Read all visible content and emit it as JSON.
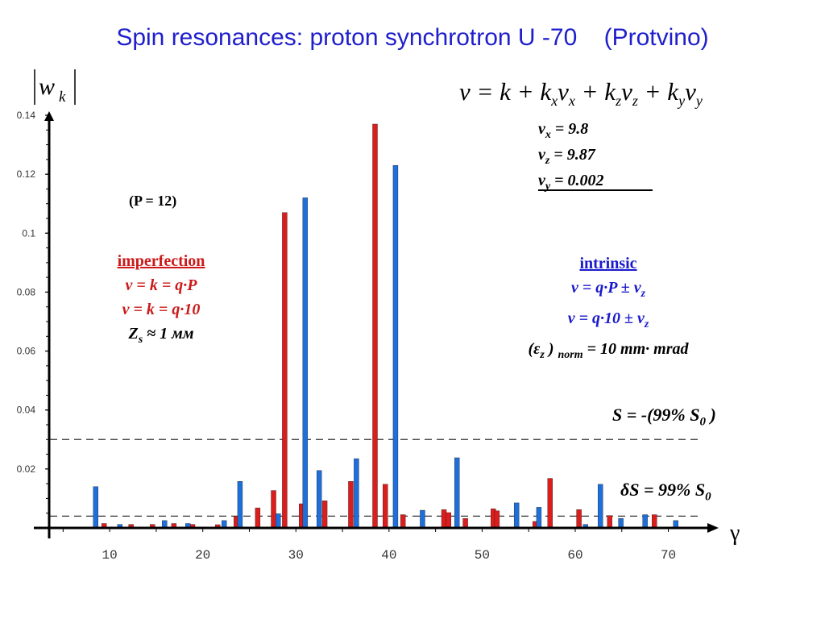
{
  "slide": {
    "title": "Spin resonances: proton synchrotron U -70    (Protvino)"
  },
  "formula": {
    "main": "ν = k + kₓνₓ + k_zν_z + k_yν_y",
    "nu_x": "= 9.8",
    "nu_z": "= 9.87",
    "nu_y": "= 0.002"
  },
  "annotations": {
    "p_note": "(P = 12)",
    "imperfection": {
      "heading": "imperfection",
      "line1": "ν = k = q·P",
      "line2": "ν = k = q·10",
      "line3_prefix": "Z",
      "line3_sub": "s",
      "line3_suffix": " ≈ 1 мм"
    },
    "intrinsic": {
      "heading": "intrinsic",
      "line1": "ν = q·P ± ν",
      "line2": "ν  = q·10 ± ν",
      "line3": "(ε",
      "line3b": " ) ",
      "line3c": "norm",
      "line3d": " = 10  mm· mrad"
    },
    "s_upper": "S = -(99% S",
    "s_lower": "δS = 99% S"
  },
  "colors": {
    "imperfection": "#dd1c1c",
    "intrinsic": "#1c6fdc",
    "title": "#1f1fcc"
  },
  "chart_data": {
    "type": "bar",
    "ylabel": "|w_k|",
    "xlabel": "γ",
    "xlim": [
      3.5,
      73.5
    ],
    "ylim": [
      0,
      0.14
    ],
    "yticks": [
      0.02,
      0.04,
      0.06,
      0.08,
      0.1,
      0.12,
      0.14
    ],
    "xticks": [
      10,
      20,
      30,
      40,
      50,
      60,
      70
    ],
    "reference_lines": [
      0.03,
      0.004
    ],
    "series": [
      {
        "name": "imperfection",
        "points": [
          [
            9.4,
            0.0015
          ],
          [
            12.3,
            0.0012
          ],
          [
            14.6,
            0.0012
          ],
          [
            16.9,
            0.0015
          ],
          [
            18.9,
            0.0012
          ],
          [
            21.6,
            0.0011
          ],
          [
            23.6,
            0.004
          ],
          [
            25.9,
            0.0068
          ],
          [
            27.6,
            0.0127
          ],
          [
            28.8,
            0.107
          ],
          [
            30.6,
            0.0082
          ],
          [
            33.1,
            0.0092
          ],
          [
            35.9,
            0.0158
          ],
          [
            38.5,
            0.137
          ],
          [
            39.6,
            0.0148
          ],
          [
            41.5,
            0.0045
          ],
          [
            45.9,
            0.0062
          ],
          [
            46.4,
            0.0052
          ],
          [
            48.2,
            0.0032
          ],
          [
            51.2,
            0.0065
          ],
          [
            51.6,
            0.0058
          ],
          [
            55.7,
            0.0022
          ],
          [
            57.3,
            0.0168
          ],
          [
            60.4,
            0.0062
          ],
          [
            63.7,
            0.0042
          ],
          [
            68.5,
            0.0045
          ]
        ]
      },
      {
        "name": "intrinsic",
        "points": [
          [
            8.5,
            0.014
          ],
          [
            11.1,
            0.0012
          ],
          [
            15.9,
            0.0025
          ],
          [
            18.4,
            0.0015
          ],
          [
            22.3,
            0.0025
          ],
          [
            24.0,
            0.0158
          ],
          [
            28.1,
            0.0048
          ],
          [
            31.0,
            0.112
          ],
          [
            32.5,
            0.0195
          ],
          [
            36.5,
            0.0235
          ],
          [
            40.7,
            0.123
          ],
          [
            43.6,
            0.006
          ],
          [
            47.3,
            0.0238
          ],
          [
            53.7,
            0.0085
          ],
          [
            56.1,
            0.007
          ],
          [
            61.1,
            0.0012
          ],
          [
            62.7,
            0.0148
          ],
          [
            64.9,
            0.0032
          ],
          [
            67.5,
            0.0045
          ],
          [
            70.8,
            0.0025
          ]
        ]
      }
    ]
  }
}
